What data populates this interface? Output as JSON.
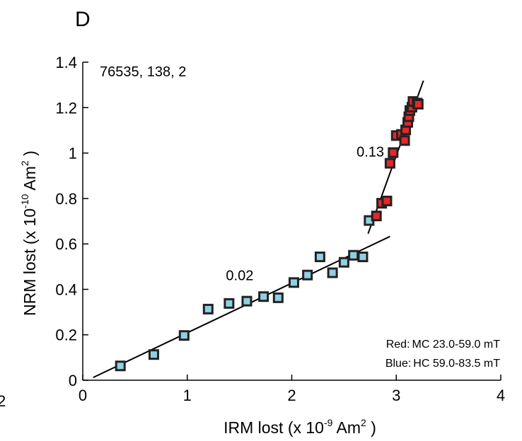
{
  "panel_label": "D",
  "cut_off_tick_label": "2",
  "chart_data": {
    "type": "scatter",
    "title": "",
    "sample_id": "76535, 138, 2",
    "xlabel": {
      "prefix": "IRM lost (x 10",
      "exp": "-9",
      "unit": " Am",
      "unit_exp": "2",
      "suffix": " )"
    },
    "ylabel": {
      "prefix": "NRM lost (x 10",
      "exp": "-10",
      "unit": " Am",
      "unit_exp": "2",
      "suffix": " )"
    },
    "xlim": [
      0,
      4
    ],
    "ylim": [
      0,
      1.4
    ],
    "xticks": [
      0,
      1,
      2,
      3,
      4
    ],
    "yticks": [
      0,
      0.2,
      0.4,
      0.6,
      0.8,
      1,
      1.2,
      1.4
    ],
    "grid": false,
    "series": [
      {
        "name": "Blue: HC 59.0-83.5 mT",
        "color": "#8fd0e3",
        "points": [
          [
            0.36,
            0.063
          ],
          [
            0.68,
            0.113
          ],
          [
            0.97,
            0.197
          ],
          [
            1.2,
            0.313
          ],
          [
            1.4,
            0.338
          ],
          [
            1.57,
            0.348
          ],
          [
            1.73,
            0.368
          ],
          [
            1.87,
            0.363
          ],
          [
            2.02,
            0.43
          ],
          [
            2.15,
            0.463
          ],
          [
            2.27,
            0.543
          ],
          [
            2.39,
            0.473
          ],
          [
            2.5,
            0.519
          ],
          [
            2.59,
            0.55
          ],
          [
            2.68,
            0.543
          ],
          [
            2.74,
            0.703
          ]
        ]
      },
      {
        "name": "Red: MC 23.0-59.0 mT",
        "color": "#e8252a",
        "points": [
          [
            2.81,
            0.723
          ],
          [
            2.86,
            0.779
          ],
          [
            2.91,
            0.789
          ],
          [
            2.94,
            0.955
          ],
          [
            2.97,
            1.002
          ],
          [
            3.0,
            1.077
          ],
          [
            3.05,
            1.082
          ],
          [
            3.08,
            1.055
          ],
          [
            3.09,
            1.102
          ],
          [
            3.11,
            1.135
          ],
          [
            3.12,
            1.16
          ],
          [
            3.13,
            1.187
          ],
          [
            3.15,
            1.202
          ],
          [
            3.16,
            1.227
          ],
          [
            3.2,
            1.22
          ],
          [
            3.21,
            1.215
          ]
        ]
      }
    ],
    "fit_lines": [
      {
        "label": "0.02",
        "x": [
          0.1,
          2.94
        ],
        "y": [
          0.012,
          0.633
        ],
        "label_at": [
          1.37,
          0.44
        ]
      },
      {
        "label": "0.13",
        "x": [
          2.73,
          3.26
        ],
        "y": [
          0.645,
          1.319
        ],
        "label_at": [
          2.62,
          0.985
        ]
      }
    ],
    "legend": {
      "position": "bottom-right",
      "entries": [
        {
          "key": "Red:",
          "text": "MC 23.0-59.0 mT"
        },
        {
          "key": "Blue:",
          "text": "HC 59.0-83.5 mT"
        }
      ]
    }
  }
}
